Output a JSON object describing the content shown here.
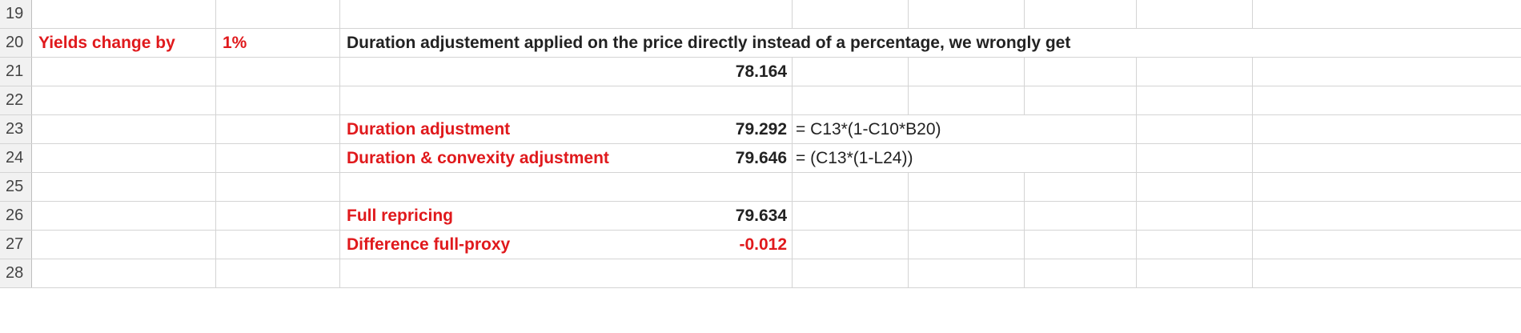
{
  "rows": [
    {
      "num": "19"
    },
    {
      "num": "20"
    },
    {
      "num": "21"
    },
    {
      "num": "22"
    },
    {
      "num": "23"
    },
    {
      "num": "24"
    },
    {
      "num": "25"
    },
    {
      "num": "26"
    },
    {
      "num": "27"
    },
    {
      "num": "28"
    }
  ],
  "cells": {
    "r20_label": "Yields change by",
    "r20_value": "1%",
    "r20_note": "Duration adjustement applied on the price directly instead of a percentage, we wrongly get",
    "r21_value": "78.164",
    "r23_label": "Duration adjustment",
    "r23_value": "79.292",
    "r23_formula": "= C13*(1-C10*B20)",
    "r24_label": "Duration & convexity adjustment",
    "r24_value": "79.646",
    "r24_formula": "= (C13*(1-L24))",
    "r26_label": "Full repricing",
    "r26_value": "79.634",
    "r27_label": "Difference full-proxy",
    "r27_value": "-0.012"
  },
  "colors": {
    "red_text": "#e0191c",
    "grid": "#d4d4d4",
    "header_bg": "#f1f1f1"
  }
}
